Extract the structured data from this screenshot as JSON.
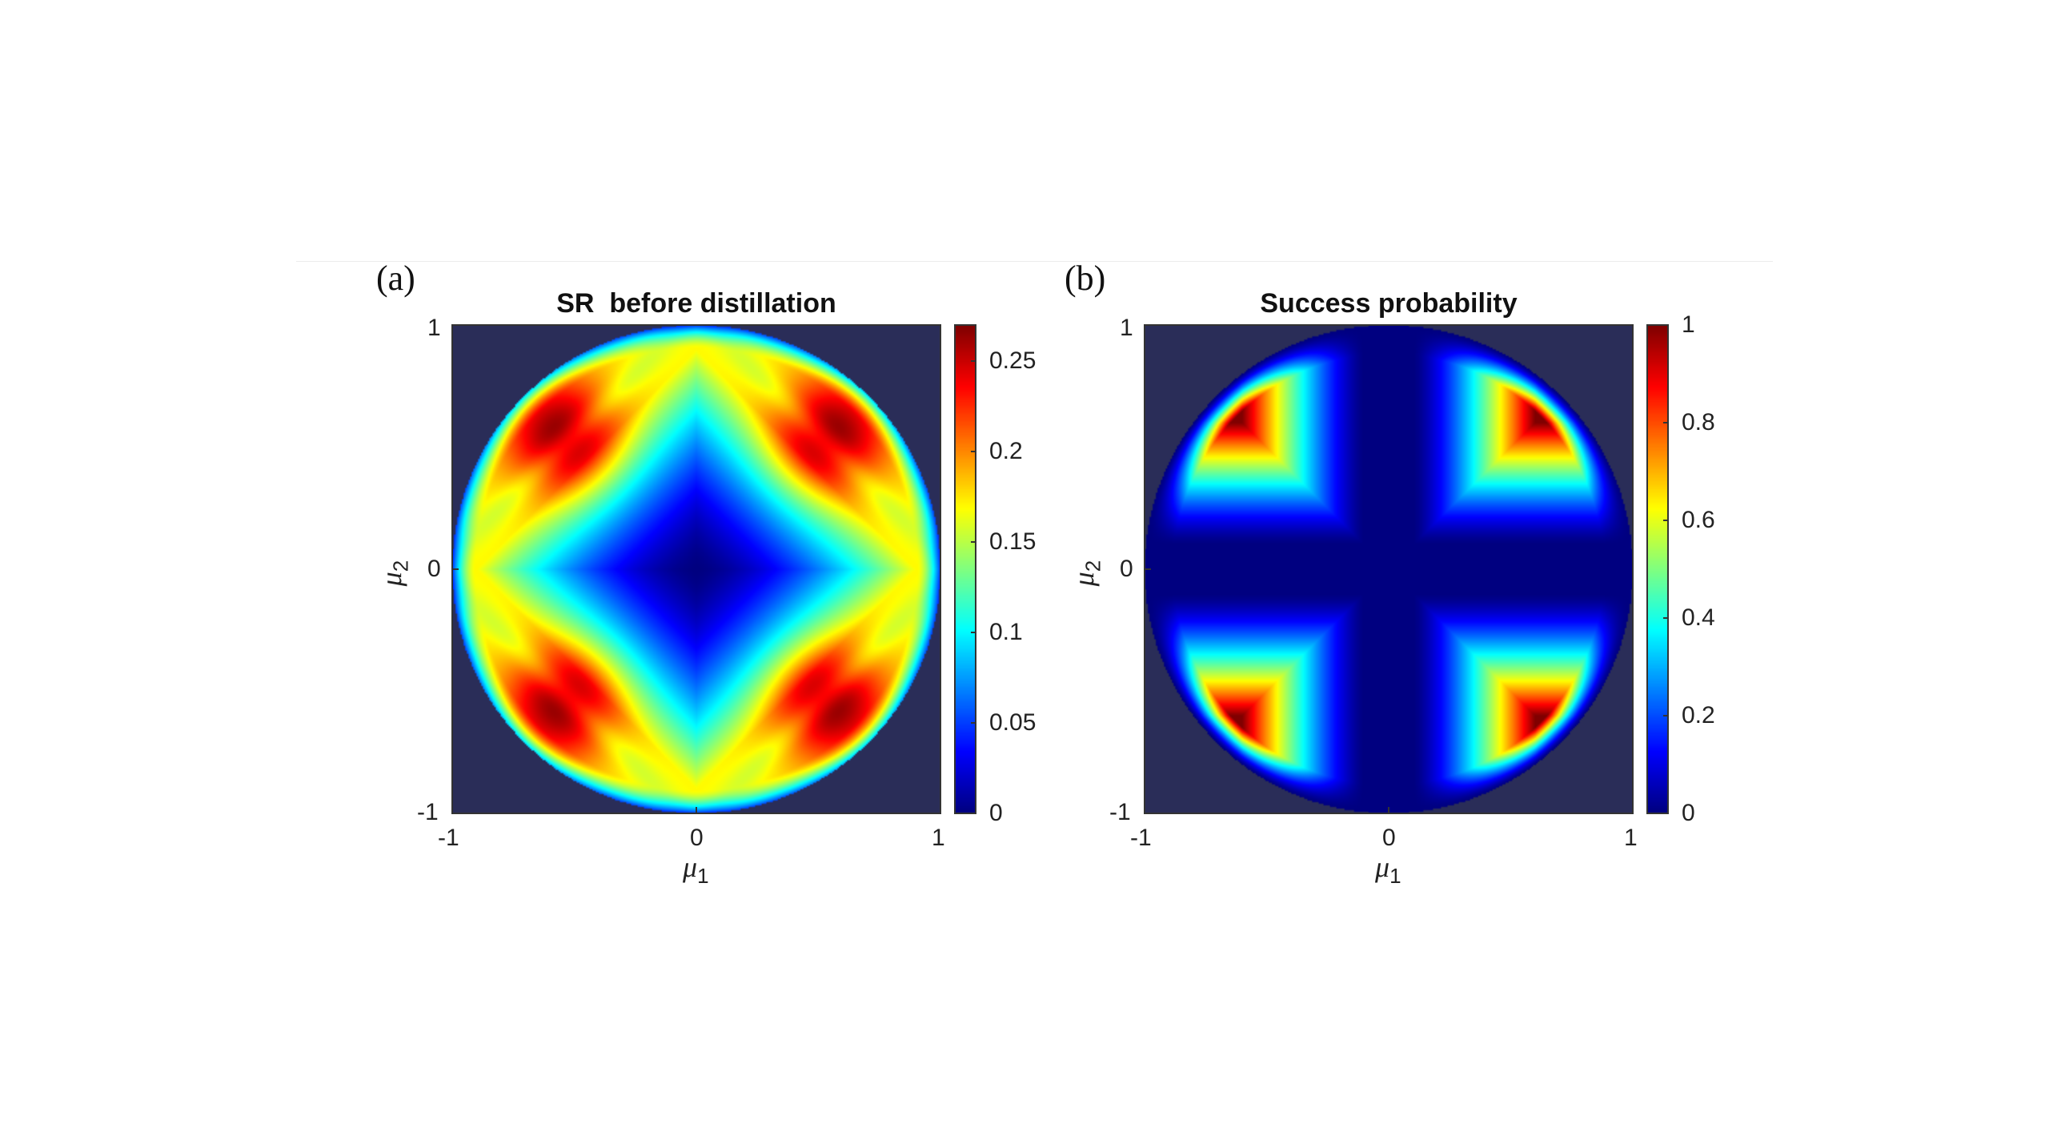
{
  "chart_data": [
    {
      "type": "heatmap",
      "panel_label": "(a)",
      "title": "SR  before distillation",
      "xlabel": "μ",
      "xlabel_sub": "1",
      "ylabel": "μ",
      "ylabel_sub": "2",
      "xlim": [
        -1,
        1
      ],
      "ylim": [
        -1,
        1
      ],
      "x_ticks": [
        "-1",
        "0",
        "1"
      ],
      "y_ticks": [
        "1",
        "0",
        "-1"
      ],
      "domain": "unit disk (μ1² + μ2² ≤ 1); value 0 outside",
      "colormap": "jet",
      "color_range": [
        0,
        0.27
      ],
      "colorbar_ticks": [
        0,
        0.05,
        0.1,
        0.15,
        0.2,
        0.25
      ],
      "colorbar_tick_labels": [
        "0",
        "0.05",
        "0.1",
        "0.15",
        "0.2",
        "0.25"
      ],
      "features": {
        "center_value": 0.0,
        "peak_value": 0.27,
        "peak_locations": [
          [
            -0.55,
            0.55
          ],
          [
            0.55,
            0.55
          ],
          [
            -0.55,
            -0.55
          ],
          [
            0.55,
            -0.55
          ]
        ],
        "ridge_value": 0.17,
        "edge_value": 0.05
      }
    },
    {
      "type": "heatmap",
      "panel_label": "(b)",
      "title": "Success probability",
      "xlabel": "μ",
      "xlabel_sub": "1",
      "ylabel": "μ",
      "ylabel_sub": "2",
      "xlim": [
        -1,
        1
      ],
      "ylim": [
        -1,
        1
      ],
      "x_ticks": [
        "-1",
        "0",
        "1"
      ],
      "y_ticks": [
        "1",
        "0",
        "-1"
      ],
      "domain": "unit disk (μ1² + μ2² ≤ 1); value 0 outside",
      "colormap": "jet",
      "color_range": [
        0,
        1
      ],
      "colorbar_ticks": [
        0,
        0.2,
        0.4,
        0.6,
        0.8,
        1
      ],
      "colorbar_tick_labels": [
        "0",
        "0.2",
        "0.4",
        "0.6",
        "0.8",
        "1"
      ],
      "features": {
        "zero_band_halfwidth": 0.1,
        "peak_value": 1.0,
        "peak_locations": [
          [
            -0.6,
            0.6
          ],
          [
            0.6,
            0.6
          ],
          [
            -0.6,
            -0.6
          ],
          [
            0.6,
            -0.6
          ]
        ]
      }
    }
  ]
}
